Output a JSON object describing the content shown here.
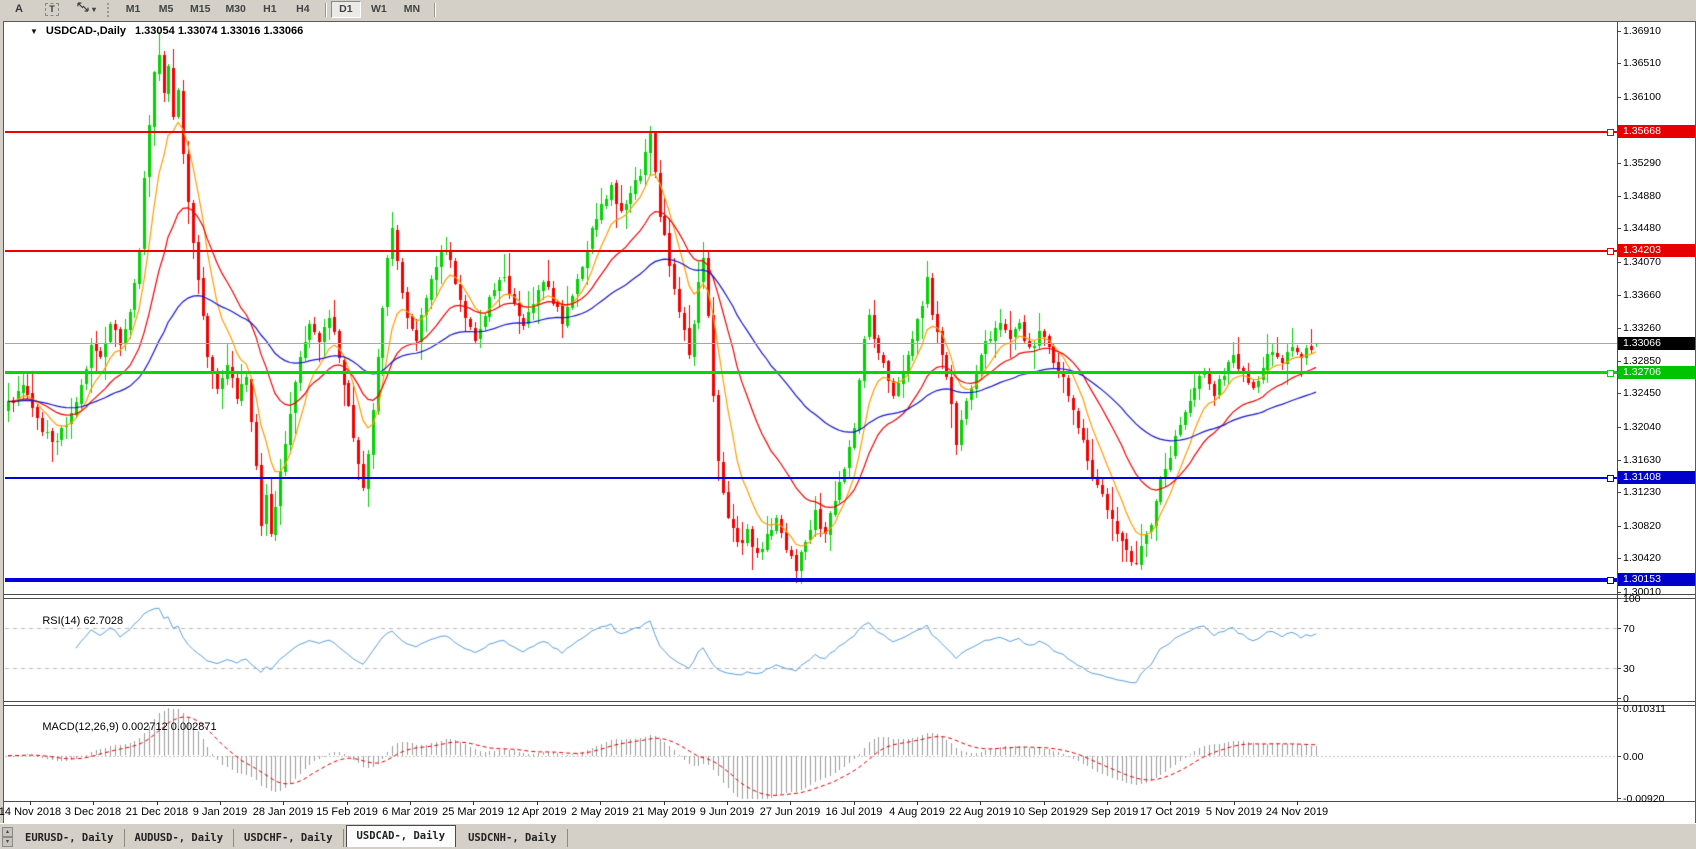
{
  "toolbar": {
    "font_tool_label": "A",
    "text_tool_label": "T",
    "dropdown_caret": "▾",
    "timeframes": [
      "M1",
      "M5",
      "M15",
      "M30",
      "H1",
      "H4",
      "D1",
      "W1",
      "MN"
    ],
    "active_timeframe": "D1"
  },
  "chart": {
    "collapse_icon": "▼",
    "title": "USDCAD-,Daily",
    "ohlc": "1.33054 1.33074 1.33016 1.33066"
  },
  "chart_data": {
    "type": "candlestick",
    "symbol": "USDCAD",
    "period": "Daily",
    "last_candle": {
      "open": 1.33054,
      "high": 1.33074,
      "low": 1.33016,
      "close": 1.33066
    },
    "y_axis_ticks": [
      1.3691,
      1.3651,
      1.361,
      1.3529,
      1.3488,
      1.3448,
      1.3407,
      1.3366,
      1.3326,
      1.3285,
      1.3245,
      1.3204,
      1.3163,
      1.3123,
      1.3082,
      1.3042,
      1.3001
    ],
    "price_levels": [
      {
        "price": 1.35668,
        "type": "resistance",
        "line_color": "#ee0000",
        "label_bg": "#e60000",
        "thickness": 2
      },
      {
        "price": 1.34203,
        "type": "resistance",
        "line_color": "#ee0000",
        "label_bg": "#e60000",
        "thickness": 2
      },
      {
        "price": 1.33066,
        "type": "current",
        "line_color": "#a8a8a8",
        "label_bg": "#000000",
        "thickness": 1
      },
      {
        "price": 1.32706,
        "type": "support",
        "line_color": "#00d800",
        "label_bg": "#00c400",
        "thickness": 3
      },
      {
        "price": 1.31408,
        "type": "support",
        "line_color": "#0000e0",
        "label_bg": "#0000cc",
        "thickness": 2
      },
      {
        "price": 1.30153,
        "type": "support",
        "line_color": "#0000e0",
        "label_bg": "#0000cc",
        "thickness": 4
      }
    ],
    "x_axis_dates": [
      "14 Nov 2018",
      "3 Dec 2018",
      "21 Dec 2018",
      "9 Jan 2019",
      "28 Jan 2019",
      "15 Feb 2019",
      "6 Mar 2019",
      "25 Mar 2019",
      "12 Apr 2019",
      "2 May 2019",
      "21 May 2019",
      "9 Jun 2019",
      "27 Jun 2019",
      "16 Jul 2019",
      "4 Aug 2019",
      "22 Aug 2019",
      "10 Sep 2019",
      "29 Sep 2019",
      "17 Oct 2019",
      "5 Nov 2019",
      "24 Nov 2019"
    ],
    "num_candles": 270,
    "bull_color": "#00d400",
    "bear_color": "#f40000",
    "moving_averages": [
      {
        "period": 8,
        "color": "#ff9c00"
      },
      {
        "period": 21,
        "color": "#f00000"
      },
      {
        "period": 55,
        "color": "#1515cc"
      }
    ],
    "price_anchors": [
      [
        0,
        1.3235
      ],
      [
        3,
        1.3255
      ],
      [
        6,
        1.3215
      ],
      [
        9,
        1.3185
      ],
      [
        12,
        1.3205
      ],
      [
        15,
        1.3255
      ],
      [
        17,
        1.3305
      ],
      [
        19,
        1.329
      ],
      [
        21,
        1.333
      ],
      [
        23,
        1.3305
      ],
      [
        25,
        1.3345
      ],
      [
        27,
        1.342
      ],
      [
        28,
        1.351
      ],
      [
        29,
        1.3575
      ],
      [
        30,
        1.364
      ],
      [
        31,
        1.3662
      ],
      [
        32,
        1.3615
      ],
      [
        33,
        1.3648
      ],
      [
        34,
        1.3585
      ],
      [
        35,
        1.3618
      ],
      [
        36,
        1.354
      ],
      [
        37,
        1.348
      ],
      [
        38,
        1.343
      ],
      [
        39,
        1.3385
      ],
      [
        40,
        1.334
      ],
      [
        41,
        1.329
      ],
      [
        43,
        1.325
      ],
      [
        45,
        1.328
      ],
      [
        47,
        1.3238
      ],
      [
        49,
        1.3265
      ],
      [
        50,
        1.321
      ],
      [
        51,
        1.3155
      ],
      [
        52,
        1.3082
      ],
      [
        53,
        1.312
      ],
      [
        54,
        1.3072
      ],
      [
        55,
        1.3105
      ],
      [
        56,
        1.315
      ],
      [
        58,
        1.322
      ],
      [
        60,
        1.329
      ],
      [
        62,
        1.333
      ],
      [
        64,
        1.3308
      ],
      [
        66,
        1.3338
      ],
      [
        68,
        1.3288
      ],
      [
        70,
        1.323
      ],
      [
        72,
        1.3158
      ],
      [
        73,
        1.3128
      ],
      [
        74,
        1.317
      ],
      [
        75,
        1.3225
      ],
      [
        76,
        1.329
      ],
      [
        77,
        1.335
      ],
      [
        78,
        1.3412
      ],
      [
        79,
        1.3448
      ],
      [
        80,
        1.3408
      ],
      [
        81,
        1.3368
      ],
      [
        82,
        1.3338
      ],
      [
        84,
        1.331
      ],
      [
        86,
        1.3362
      ],
      [
        88,
        1.34
      ],
      [
        90,
        1.3422
      ],
      [
        92,
        1.338
      ],
      [
        94,
        1.3338
      ],
      [
        96,
        1.331
      ],
      [
        98,
        1.334
      ],
      [
        100,
        1.3372
      ],
      [
        102,
        1.3388
      ],
      [
        104,
        1.3355
      ],
      [
        106,
        1.3328
      ],
      [
        108,
        1.3355
      ],
      [
        110,
        1.3382
      ],
      [
        112,
        1.3355
      ],
      [
        114,
        1.333
      ],
      [
        116,
        1.3365
      ],
      [
        118,
        1.34
      ],
      [
        120,
        1.3448
      ],
      [
        122,
        1.3478
      ],
      [
        124,
        1.3502
      ],
      [
        126,
        1.347
      ],
      [
        128,
        1.3492
      ],
      [
        130,
        1.3512
      ],
      [
        131,
        1.3542
      ],
      [
        132,
        1.3565
      ],
      [
        133,
        1.3518
      ],
      [
        134,
        1.3462
      ],
      [
        136,
        1.3402
      ],
      [
        138,
        1.3345
      ],
      [
        140,
        1.3292
      ],
      [
        141,
        1.333
      ],
      [
        142,
        1.3382
      ],
      [
        143,
        1.3412
      ],
      [
        144,
        1.334
      ],
      [
        145,
        1.3242
      ],
      [
        146,
        1.3162
      ],
      [
        147,
        1.3122
      ],
      [
        148,
        1.3092
      ],
      [
        150,
        1.3062
      ],
      [
        152,
        1.3078
      ],
      [
        154,
        1.3048
      ],
      [
        156,
        1.3072
      ],
      [
        158,
        1.3092
      ],
      [
        160,
        1.3052
      ],
      [
        162,
        1.3026
      ],
      [
        164,
        1.3062
      ],
      [
        166,
        1.3102
      ],
      [
        168,
        1.3072
      ],
      [
        170,
        1.3112
      ],
      [
        172,
        1.3152
      ],
      [
        174,
        1.3202
      ],
      [
        175,
        1.3262
      ],
      [
        176,
        1.3312
      ],
      [
        177,
        1.3342
      ],
      [
        178,
        1.3312
      ],
      [
        180,
        1.3282
      ],
      [
        182,
        1.3242
      ],
      [
        184,
        1.3272
      ],
      [
        186,
        1.3312
      ],
      [
        188,
        1.3352
      ],
      [
        189,
        1.3388
      ],
      [
        190,
        1.3342
      ],
      [
        192,
        1.3292
      ],
      [
        194,
        1.3232
      ],
      [
        195,
        1.3182
      ],
      [
        196,
        1.3212
      ],
      [
        198,
        1.3252
      ],
      [
        200,
        1.3292
      ],
      [
        202,
        1.3312
      ],
      [
        204,
        1.3332
      ],
      [
        206,
        1.3312
      ],
      [
        208,
        1.3332
      ],
      [
        210,
        1.3302
      ],
      [
        212,
        1.3322
      ],
      [
        214,
        1.3302
      ],
      [
        216,
        1.3272
      ],
      [
        218,
        1.3242
      ],
      [
        220,
        1.3202
      ],
      [
        222,
        1.3162
      ],
      [
        224,
        1.3132
      ],
      [
        226,
        1.3102
      ],
      [
        228,
        1.3072
      ],
      [
        230,
        1.3052
      ],
      [
        232,
        1.3036
      ],
      [
        234,
        1.3072
      ],
      [
        236,
        1.3112
      ],
      [
        238,
        1.3152
      ],
      [
        240,
        1.3192
      ],
      [
        242,
        1.3222
      ],
      [
        244,
        1.3252
      ],
      [
        246,
        1.3272
      ],
      [
        248,
        1.3242
      ],
      [
        250,
        1.3266
      ],
      [
        252,
        1.3292
      ],
      [
        254,
        1.3272
      ],
      [
        256,
        1.3252
      ],
      [
        258,
        1.3276
      ],
      [
        260,
        1.3296
      ],
      [
        262,
        1.3282
      ],
      [
        264,
        1.3302
      ],
      [
        266,
        1.3288
      ],
      [
        268,
        1.3298
      ],
      [
        269,
        1.33066
      ]
    ],
    "wick_extremes": [
      {
        "i": 31,
        "high": 1.369
      },
      {
        "i": 52,
        "low": 1.307
      },
      {
        "i": 132,
        "high": 1.3565
      },
      {
        "i": 162,
        "low": 1.3016
      },
      {
        "i": 232,
        "low": 1.3038
      }
    ]
  },
  "rsi": {
    "label": "RSI(14)",
    "value": "62.7028",
    "line_color": "#5b9fdc",
    "axis_labels": [
      "100",
      "70",
      "30",
      "0"
    ],
    "axis_values": [
      100,
      70,
      30,
      0
    ],
    "guide_levels": [
      70,
      30
    ]
  },
  "macd": {
    "label": "MACD(12,26,9)",
    "value": "0.002712 0.002871",
    "histogram_color": "#9b9b9b",
    "signal_color": "#e00000",
    "axis_labels": [
      "0.010311",
      "0.00",
      "-0.00920"
    ],
    "axis_values": [
      0.010311,
      0,
      -0.0092
    ]
  },
  "tabs": {
    "scroll_up_icon": "▴",
    "scroll_down_icon": "▾",
    "items": [
      "EURUSD-, Daily",
      "AUDUSD-, Daily",
      "USDCHF-, Daily",
      "USDCAD-, Daily",
      "USDCNH-, Daily"
    ],
    "active_index": 3
  }
}
